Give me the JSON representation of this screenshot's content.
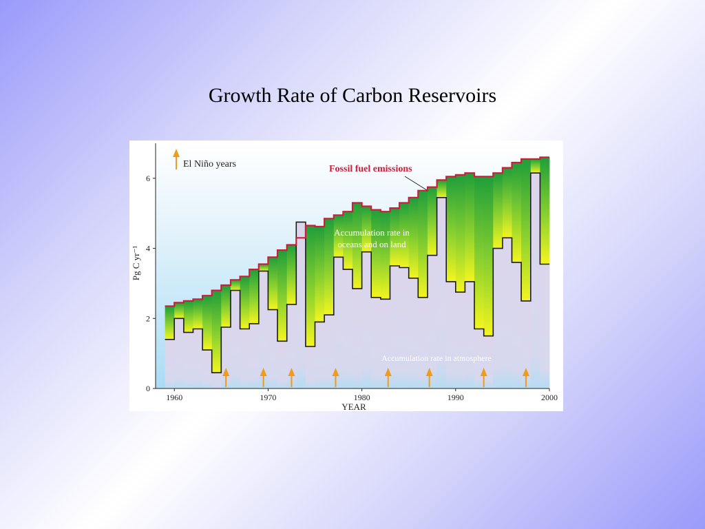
{
  "slide": {
    "title": "Growth Rate of Carbon Reservoirs"
  },
  "chart_data": {
    "type": "area",
    "xlabel": "YEAR",
    "ylabel": "Pg C yr⁻¹",
    "xlim": [
      1958,
      2000
    ],
    "ylim": [
      0,
      7
    ],
    "x_ticks": [
      1960,
      1970,
      1980,
      1990,
      2000
    ],
    "x_tick_labels": [
      "1960",
      "1970",
      "1980",
      "1990",
      "2000"
    ],
    "y_ticks": [
      0,
      2,
      4,
      6
    ],
    "y_tick_labels": [
      "0",
      "2",
      "4",
      "6"
    ],
    "legend": {
      "label": "El Niño years",
      "placement": "top-left"
    },
    "annotations": {
      "fossil": "Fossil fuel emissions",
      "oceans_land_line1": "Accumulation rate in",
      "oceans_land_line2": "oceans and on land",
      "atmosphere": "Accumulation rate in atmosphere"
    },
    "colors": {
      "fossil_line": "#cc1d3a",
      "oceans_land_top": "#1f9e3a",
      "oceans_land_bottom": "#f3f520",
      "atmosphere_fill": "#ddd8ec",
      "atmosphere_bottom": "#b6dcf2",
      "arrows": "#f09b1a",
      "sky_top": "#ffffff",
      "sky_bottom": "#a9dcf5"
    },
    "series": [
      {
        "name": "Fossil fuel emissions",
        "years": [
          1959,
          1960,
          1961,
          1962,
          1963,
          1964,
          1965,
          1966,
          1967,
          1968,
          1969,
          1970,
          1971,
          1972,
          1973,
          1974,
          1975,
          1976,
          1977,
          1978,
          1979,
          1980,
          1981,
          1982,
          1983,
          1984,
          1985,
          1986,
          1987,
          1988,
          1989,
          1990,
          1991,
          1992,
          1993,
          1994,
          1995,
          1996,
          1997,
          1998,
          1999
        ],
        "values": [
          2.35,
          2.45,
          2.5,
          2.55,
          2.65,
          2.8,
          2.95,
          3.1,
          3.2,
          3.4,
          3.55,
          3.75,
          3.95,
          4.1,
          4.3,
          4.65,
          4.62,
          4.85,
          4.95,
          5.05,
          5.3,
          5.2,
          5.1,
          5.05,
          5.15,
          5.3,
          5.45,
          5.65,
          5.75,
          5.95,
          6.05,
          6.1,
          6.15,
          6.05,
          6.05,
          6.15,
          6.3,
          6.45,
          6.55,
          6.55,
          6.6
        ]
      },
      {
        "name": "Accumulation rate in atmosphere",
        "years": [
          1959,
          1960,
          1961,
          1962,
          1963,
          1964,
          1965,
          1966,
          1967,
          1968,
          1969,
          1970,
          1971,
          1972,
          1973,
          1974,
          1975,
          1976,
          1977,
          1978,
          1979,
          1980,
          1981,
          1982,
          1983,
          1984,
          1985,
          1986,
          1987,
          1988,
          1989,
          1990,
          1991,
          1992,
          1993,
          1994,
          1995,
          1996,
          1997,
          1998,
          1999
        ],
        "values": [
          1.4,
          2.0,
          1.6,
          1.7,
          1.1,
          0.45,
          1.75,
          2.8,
          1.7,
          1.85,
          3.35,
          2.25,
          1.35,
          2.4,
          4.75,
          1.2,
          1.9,
          2.1,
          3.75,
          3.4,
          2.85,
          3.9,
          2.6,
          2.55,
          3.5,
          3.45,
          3.15,
          2.6,
          3.8,
          5.45,
          3.05,
          2.75,
          3.05,
          1.7,
          1.5,
          4.0,
          4.3,
          3.6,
          2.5,
          6.15,
          3.55
        ]
      }
    ],
    "el_nino_years": [
      1965.5,
      1969.5,
      1972.5,
      1977.2,
      1982.8,
      1987.2,
      1993,
      1997.5
    ]
  }
}
